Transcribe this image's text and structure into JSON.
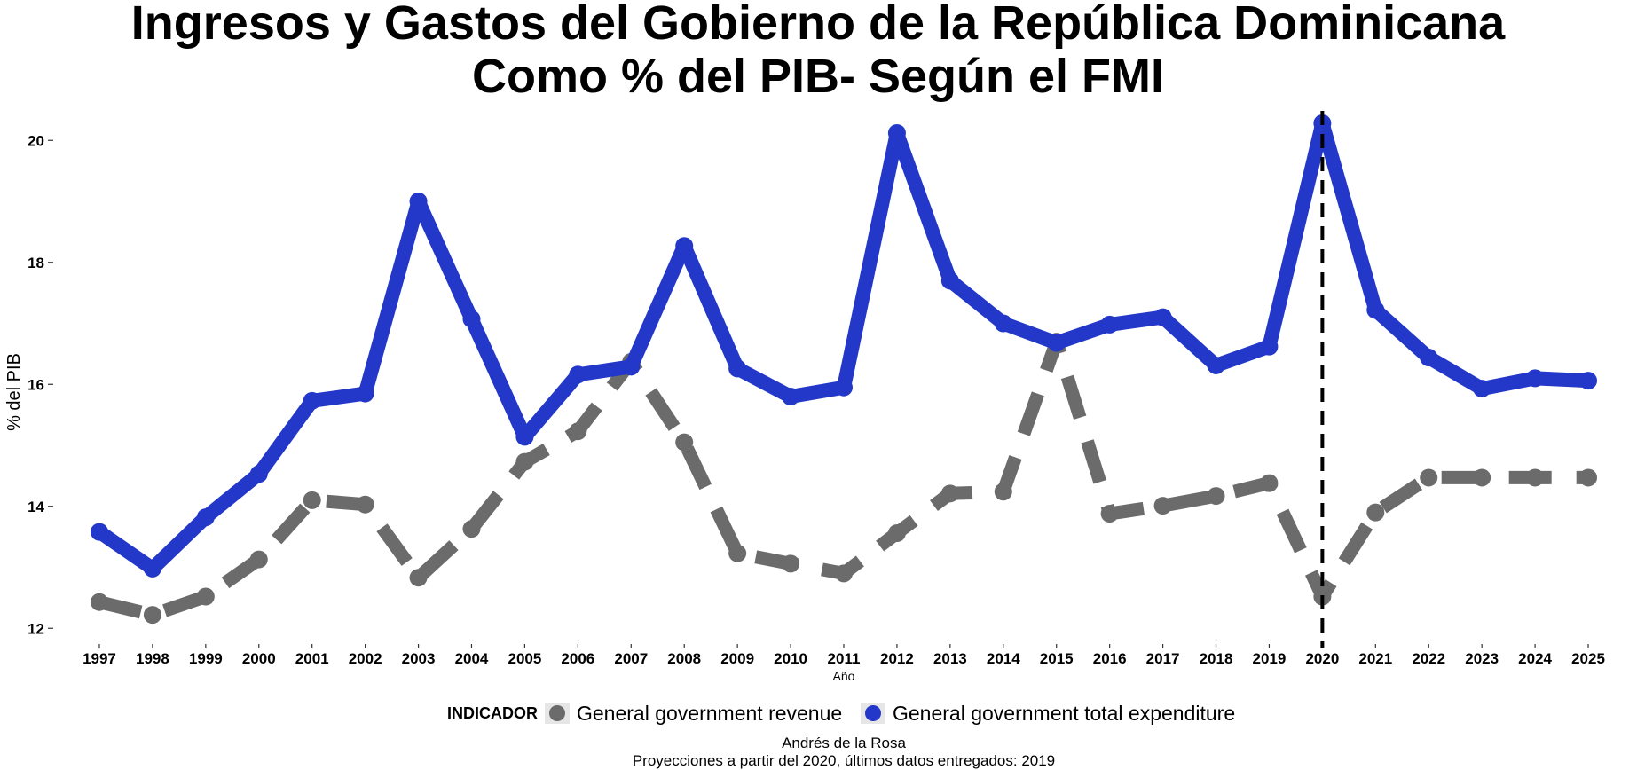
{
  "chart_data": {
    "type": "line",
    "title": "Ingresos y Gastos del Gobierno de la República Dominicana",
    "subtitle": "Como % del PIB- Según el FMI",
    "xlabel": "Año",
    "ylabel": "% del PIB",
    "x": [
      1997,
      1998,
      1999,
      2000,
      2001,
      2002,
      2003,
      2004,
      2005,
      2006,
      2007,
      2008,
      2009,
      2010,
      2011,
      2012,
      2013,
      2014,
      2015,
      2016,
      2017,
      2018,
      2019,
      2020,
      2021,
      2022,
      2023,
      2024,
      2025
    ],
    "x_ticks": [
      "1997",
      "1998",
      "1999",
      "2000",
      "2001",
      "2002",
      "2003",
      "2004",
      "2005",
      "2006",
      "2007",
      "2008",
      "2009",
      "2010",
      "2011",
      "2012",
      "2013",
      "2014",
      "2015",
      "2016",
      "2017",
      "2018",
      "2019",
      "2020",
      "2021",
      "2022",
      "2023",
      "2024",
      "2025"
    ],
    "y_ticks": [
      "12",
      "14",
      "16",
      "18",
      "20"
    ],
    "ylim": [
      11.8,
      20.6
    ],
    "xlim": [
      1996.7,
      2025.3
    ],
    "legend_title": "INDICADOR",
    "legend_position": "bottom",
    "grid": false,
    "reference_line": {
      "x": 2020,
      "style": "dashed",
      "color": "#000000"
    },
    "series": [
      {
        "name": "General government revenue",
        "color": "#6b6b6b",
        "style": "dashed",
        "values": [
          12.43,
          12.22,
          12.52,
          13.13,
          14.1,
          14.03,
          12.83,
          13.63,
          14.73,
          15.23,
          16.37,
          15.05,
          13.23,
          13.06,
          12.9,
          13.56,
          14.21,
          14.24,
          16.7,
          13.88,
          14.01,
          14.17,
          14.38,
          12.52,
          13.9,
          14.47,
          14.47,
          14.47,
          14.47
        ]
      },
      {
        "name": "General government total expenditure",
        "color": "#2338c9",
        "style": "solid",
        "values": [
          13.58,
          12.98,
          13.82,
          14.53,
          15.73,
          15.85,
          19.0,
          17.07,
          15.14,
          16.16,
          16.29,
          18.27,
          16.26,
          15.8,
          15.95,
          20.12,
          17.7,
          17.0,
          16.68,
          16.98,
          17.1,
          16.31,
          16.62,
          20.28,
          17.22,
          16.44,
          15.93,
          16.1,
          16.06
        ]
      }
    ],
    "caption_lines": [
      "Andrés de la Rosa",
      "Proyecciones a partir del 2020, últimos datos entregados: 2019"
    ]
  }
}
